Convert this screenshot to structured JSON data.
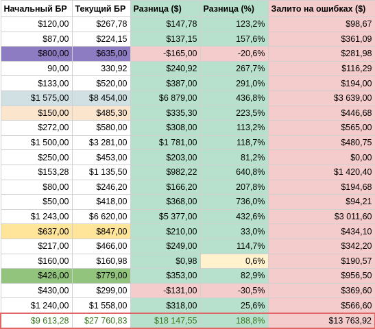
{
  "colors": {
    "green": "#b7e1cd",
    "red": "#f4cccc",
    "purple": "#8e7cc3",
    "light_blue": "#d0e0e3",
    "light_orange": "#fce5cd",
    "yellow": "#ffe599",
    "light_yellow": "#fff2cc",
    "dark_green": "#93c47d",
    "total_border": "#e06666",
    "total_text": "#38761d"
  },
  "headers": [
    "Начальный БР",
    "Текущий БР",
    "Разница ($)",
    "Разница (%)",
    "Залито на ошибках ($)"
  ],
  "rows": [
    {
      "start": "$120,00",
      "current": "$267,78",
      "diff": "$147,78",
      "pct": "123,2%",
      "lost": "$98,67"
    },
    {
      "start": "$87,00",
      "current": "$224,15",
      "diff": "$137,15",
      "pct": "157,6%",
      "lost": "$361,09"
    },
    {
      "start": "$800,00",
      "current": "$635,00",
      "diff": "-$165,00",
      "pct": "-20,6%",
      "lost": "$281,98"
    },
    {
      "start": "90,00",
      "current": "330,92",
      "diff": "$240,92",
      "pct": "267,7%",
      "lost": "$116,29"
    },
    {
      "start": "$133,00",
      "current": "$520,00",
      "diff": "$387,00",
      "pct": "291,0%",
      "lost": "$194,00"
    },
    {
      "start": "$1 575,00",
      "current": "$8 454,00",
      "diff": "$6 879,00",
      "pct": "436,8%",
      "lost": "$3 639,00"
    },
    {
      "start": "$150,00",
      "current": "$485,30",
      "diff": "$335,30",
      "pct": "223,5%",
      "lost": "$446,68"
    },
    {
      "start": "$272,00",
      "current": "$580,00",
      "diff": "$308,00",
      "pct": "113,2%",
      "lost": "$565,00"
    },
    {
      "start": "$1 500,00",
      "current": "$3 281,00",
      "diff": "$1 781,00",
      "pct": "118,7%",
      "lost": "$480,75"
    },
    {
      "start": "$250,00",
      "current": "$453,00",
      "diff": "$203,00",
      "pct": "81,2%",
      "lost": "$0,00"
    },
    {
      "start": "$153,28",
      "current": "$1 135,50",
      "diff": "$982,22",
      "pct": "640,8%",
      "lost": "$1 420,40"
    },
    {
      "start": "$80,00",
      "current": "$246,20",
      "diff": "$166,20",
      "pct": "207,8%",
      "lost": "$194,68"
    },
    {
      "start": "$50,00",
      "current": "$418,00",
      "diff": "$368,00",
      "pct": "736,0%",
      "lost": "$94,21"
    },
    {
      "start": "$1 243,00",
      "current": "$6 620,00",
      "diff": "$5 377,00",
      "pct": "432,6%",
      "lost": "$3 011,60"
    },
    {
      "start": "$637,00",
      "current": "$847,00",
      "diff": "$210,00",
      "pct": "33,0%",
      "lost": "$434,10"
    },
    {
      "start": "$217,00",
      "current": "$466,00",
      "diff": "$249,00",
      "pct": "114,7%",
      "lost": "$342,20"
    },
    {
      "start": "$160,00",
      "current": "$160,98",
      "diff": "$0,98",
      "pct": "0,6%",
      "lost": "$190,57"
    },
    {
      "start": "$426,00",
      "current": "$779,00",
      "diff": "$353,00",
      "pct": "82,9%",
      "lost": "$956,50"
    },
    {
      "start": "$430,00",
      "current": "$299,00",
      "diff": "-$131,00",
      "pct": "-30,5%",
      "lost": "$369,60"
    },
    {
      "start": "$1 240,00",
      "current": "$1 558,00",
      "diff": "$318,00",
      "pct": "25,6%",
      "lost": "$566,60"
    }
  ],
  "totals": {
    "start": "$9 613,28",
    "current": "$27 760,83",
    "diff": "$18 147,55",
    "pct": "188,8%",
    "lost": "$13 763,92"
  }
}
